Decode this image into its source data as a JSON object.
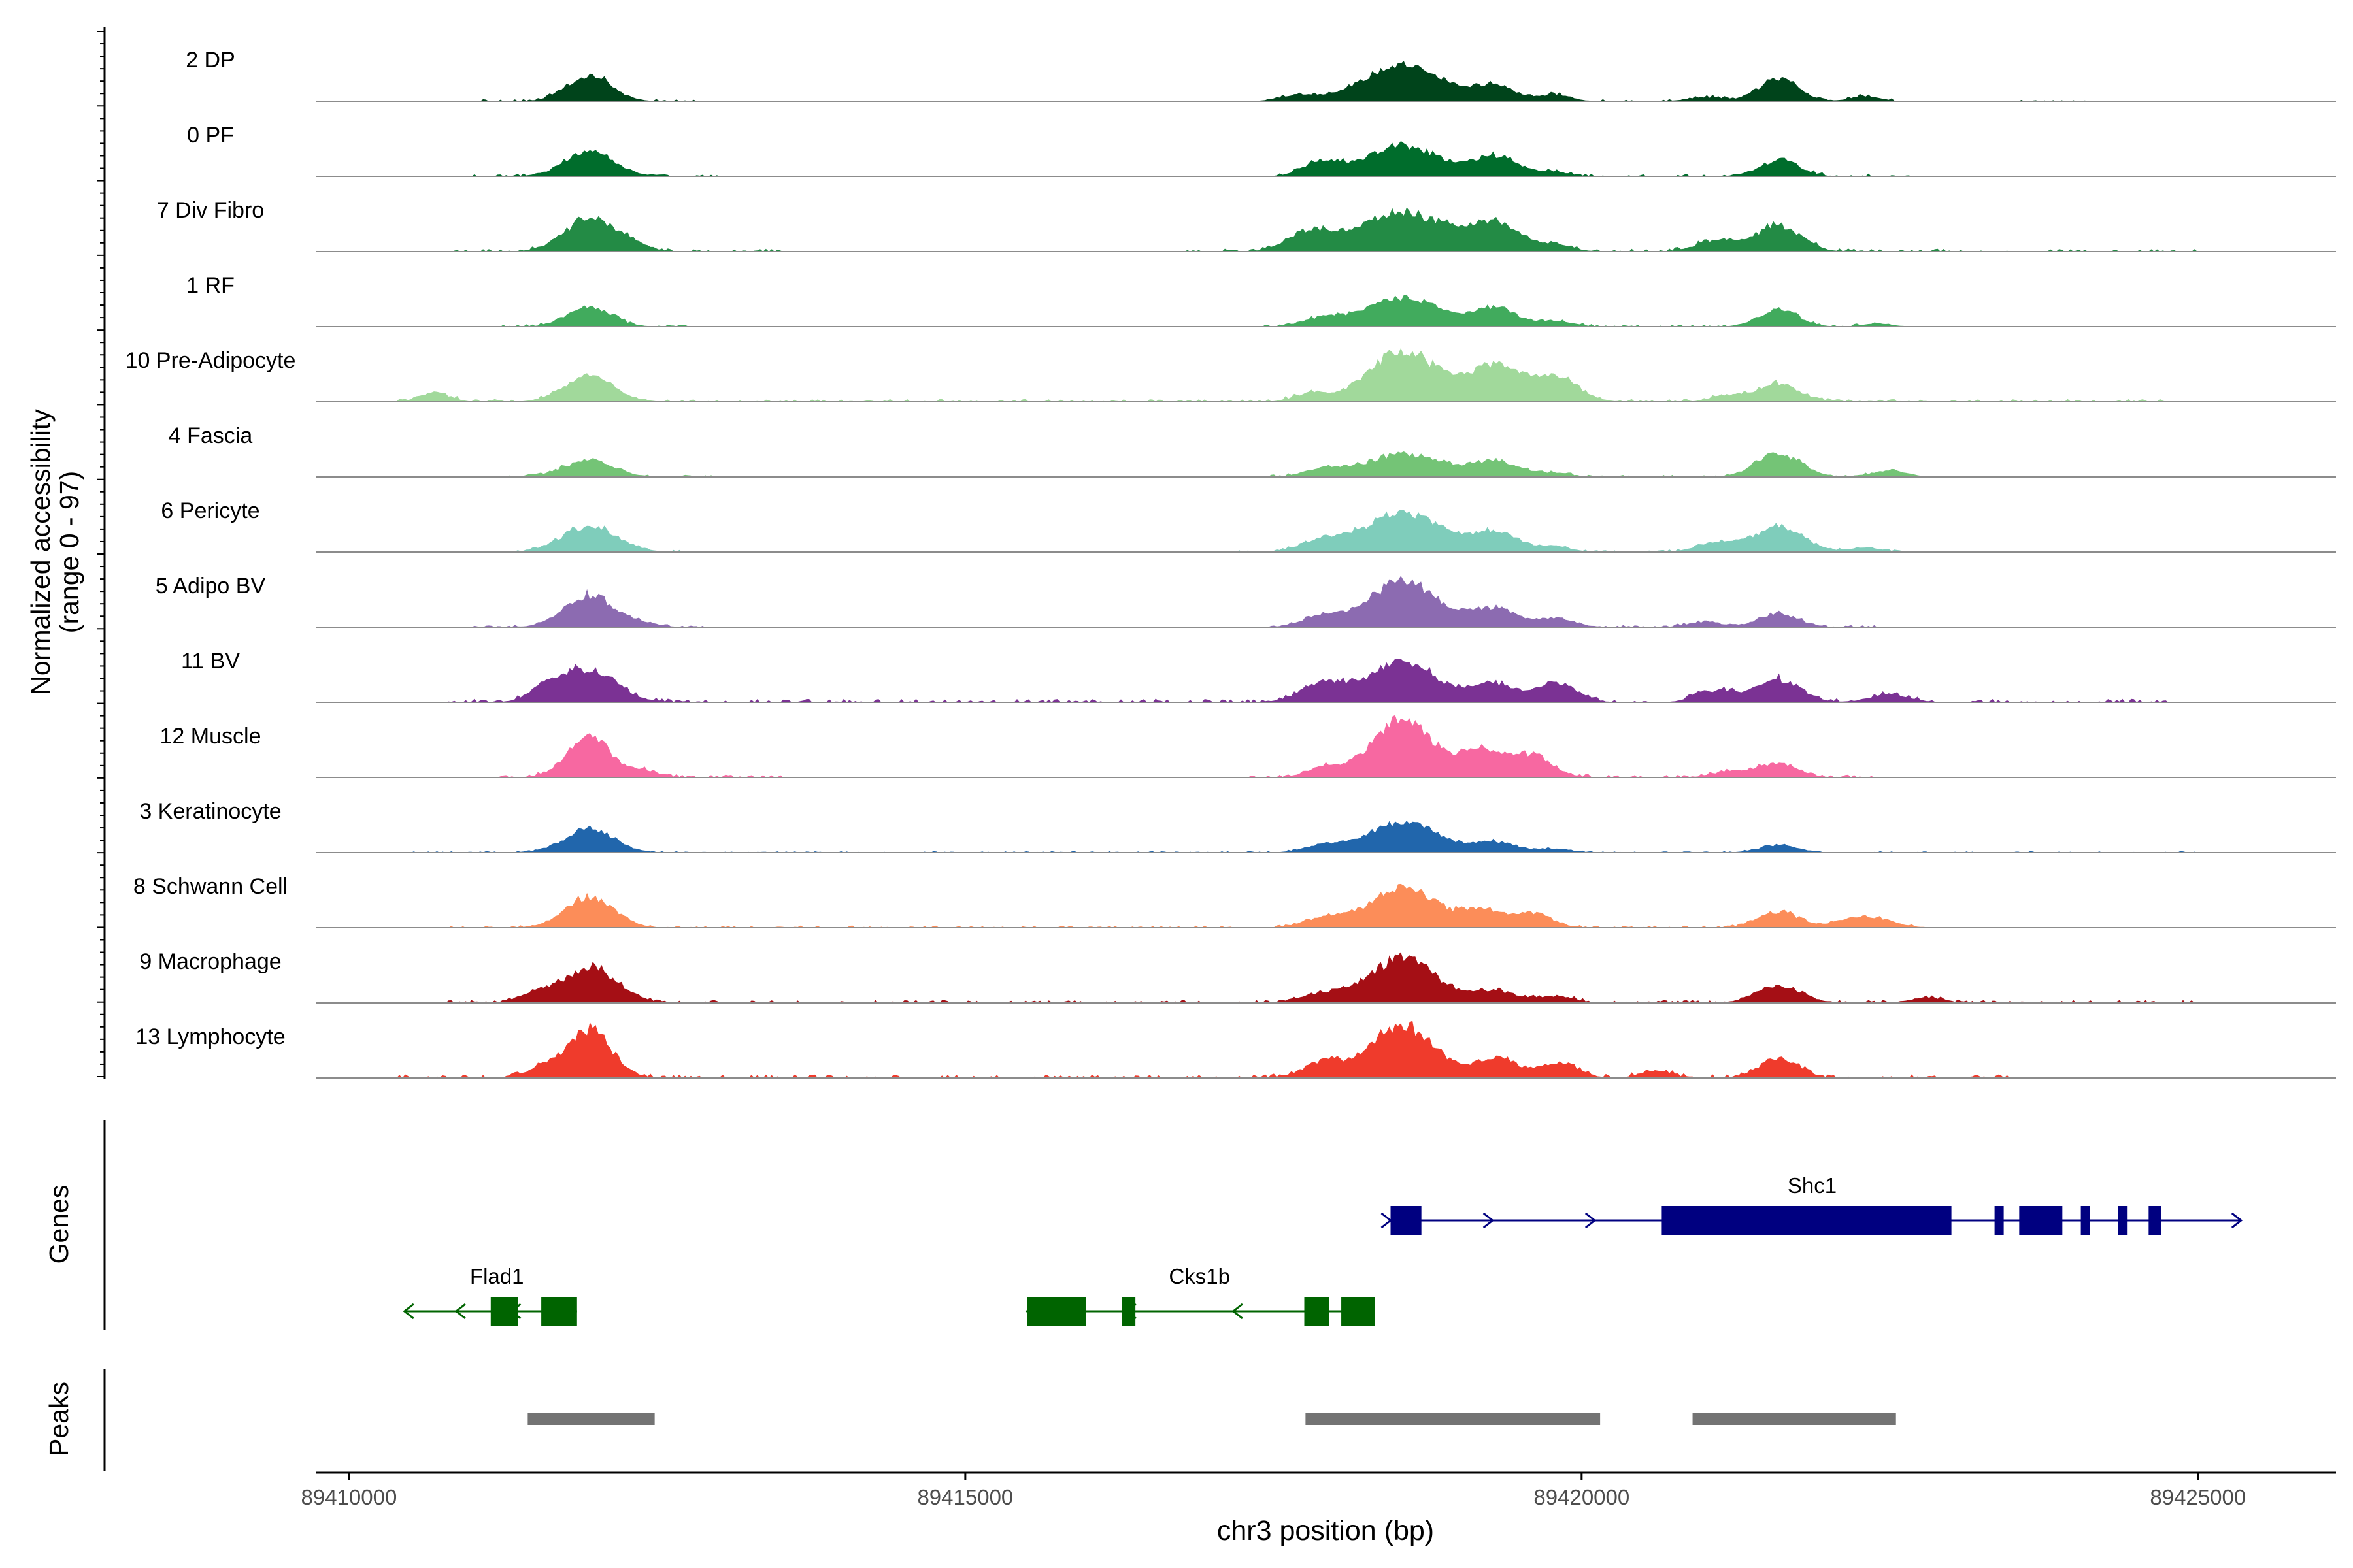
{
  "chart_data": {
    "type": "area",
    "title": "",
    "coverage": {
      "ylabel_line1": "Normalized accessibility",
      "ylabel_line2": "(range 0 - 97)",
      "ylim": [
        0,
        97
      ],
      "tracks": [
        {
          "label": "2 DP",
          "color": "#00441b",
          "peaks": [
            [
              89411950,
              40,
              180
            ],
            [
              89418550,
              55,
              320
            ],
            [
              89419300,
              22,
              180
            ],
            [
              89419800,
              10,
              120
            ],
            [
              89421600,
              35,
              160
            ],
            [
              89422300,
              8,
              120
            ],
            [
              89417700,
              10,
              140
            ],
            [
              89421000,
              6,
              140
            ]
          ],
          "noise": [
            [
              89411000,
              89412800,
              3
            ],
            [
              89417400,
              89422600,
              4
            ],
            [
              89423500,
              89424200,
              2
            ]
          ]
        },
        {
          "label": "0 PF",
          "color": "#006d2c",
          "peaks": [
            [
              89411950,
              38,
              200
            ],
            [
              89418550,
              48,
              280
            ],
            [
              89419300,
              30,
              200
            ],
            [
              89419800,
              6,
              120
            ],
            [
              89421600,
              25,
              160
            ],
            [
              89417900,
              22,
              160
            ]
          ],
          "noise": [
            [
              89411000,
              89413000,
              3
            ],
            [
              89417400,
              89422700,
              4
            ]
          ]
        },
        {
          "label": "7 Div Fibro",
          "color": "#238b45",
          "peaks": [
            [
              89411950,
              52,
              200
            ],
            [
              89412300,
              10,
              120
            ],
            [
              89418550,
              62,
              340
            ],
            [
              89419300,
              40,
              220
            ],
            [
              89419800,
              8,
              140
            ],
            [
              89421600,
              40,
              180
            ],
            [
              89421100,
              18,
              160
            ],
            [
              89417800,
              30,
              180
            ]
          ],
          "noise": [
            [
              89410800,
              89413500,
              4
            ],
            [
              89416800,
              89425000,
              4
            ]
          ]
        },
        {
          "label": "1 RF",
          "color": "#41ab5d",
          "peaks": [
            [
              89411950,
              30,
              180
            ],
            [
              89418550,
              45,
              300
            ],
            [
              89419300,
              28,
              180
            ],
            [
              89419800,
              8,
              140
            ],
            [
              89421600,
              26,
              160
            ],
            [
              89417900,
              12,
              160
            ],
            [
              89422400,
              5,
              120
            ]
          ],
          "noise": [
            [
              89411200,
              89412800,
              3
            ],
            [
              89417400,
              89422600,
              3
            ]
          ]
        },
        {
          "label": "10 Pre-Adipocyte",
          "color": "#a1d99b",
          "peaks": [
            [
              89410700,
              14,
              120
            ],
            [
              89411950,
              40,
              200
            ],
            [
              89418550,
              80,
              280
            ],
            [
              89419300,
              55,
              220
            ],
            [
              89419800,
              35,
              180
            ],
            [
              89421600,
              28,
              160
            ],
            [
              89421200,
              10,
              140
            ],
            [
              89417800,
              12,
              140
            ]
          ],
          "noise": [
            [
              89410400,
              89424800,
              4
            ]
          ]
        },
        {
          "label": "4 Fascia",
          "color": "#74c476",
          "peaks": [
            [
              89411950,
              26,
              200
            ],
            [
              89418550,
              36,
              300
            ],
            [
              89419300,
              24,
              200
            ],
            [
              89419800,
              6,
              120
            ],
            [
              89421600,
              36,
              180
            ],
            [
              89422500,
              10,
              140
            ],
            [
              89417900,
              12,
              160
            ]
          ],
          "noise": [
            [
              89411200,
              89413000,
              3
            ],
            [
              89417400,
              89422700,
              3
            ]
          ]
        },
        {
          "label": "6 Pericyte",
          "color": "#7fcdbb",
          "peaks": [
            [
              89411950,
              40,
              220
            ],
            [
              89418550,
              62,
              300
            ],
            [
              89419300,
              30,
              200
            ],
            [
              89419800,
              8,
              120
            ],
            [
              89421600,
              40,
              200
            ],
            [
              89421100,
              15,
              160
            ],
            [
              89417900,
              18,
              180
            ],
            [
              89422300,
              8,
              120
            ]
          ],
          "noise": [
            [
              89411200,
              89412800,
              3
            ],
            [
              89417200,
              89422600,
              3
            ]
          ]
        },
        {
          "label": "5 Adipo BV",
          "color": "#8c6bb1",
          "peaks": [
            [
              89411950,
              50,
              200
            ],
            [
              89418550,
              72,
              280
            ],
            [
              89419300,
              30,
              180
            ],
            [
              89419800,
              14,
              140
            ],
            [
              89421600,
              22,
              160
            ],
            [
              89421000,
              8,
              140
            ],
            [
              89417900,
              16,
              160
            ],
            [
              89412400,
              5,
              120
            ]
          ],
          "noise": [
            [
              89411000,
              89413000,
              3
            ],
            [
              89417400,
              89422600,
              3
            ]
          ]
        },
        {
          "label": "11 BV",
          "color": "#7b3294",
          "peaks": [
            [
              89411950,
              52,
              220
            ],
            [
              89418550,
              62,
              280
            ],
            [
              89419300,
              28,
              180
            ],
            [
              89419800,
              30,
              160
            ],
            [
              89421600,
              35,
              180
            ],
            [
              89421100,
              18,
              160
            ],
            [
              89417900,
              28,
              180
            ],
            [
              89422500,
              12,
              160
            ],
            [
              89411600,
              18,
              140
            ]
          ],
          "noise": [
            [
              89410800,
              89424800,
              5
            ]
          ]
        },
        {
          "label": "12 Muscle",
          "color": "#f768a1",
          "peaks": [
            [
              89411950,
              62,
              180
            ],
            [
              89418550,
              88,
              260
            ],
            [
              89419200,
              40,
              160
            ],
            [
              89419600,
              35,
              160
            ],
            [
              89421600,
              22,
              160
            ],
            [
              89421200,
              10,
              140
            ],
            [
              89417900,
              14,
              140
            ],
            [
              89412400,
              10,
              120
            ]
          ],
          "noise": [
            [
              89411200,
              89413500,
              4
            ],
            [
              89417300,
              89422400,
              4
            ]
          ]
        },
        {
          "label": "3 Keratinocyte",
          "color": "#2166ac",
          "peaks": [
            [
              89411950,
              36,
              200
            ],
            [
              89418550,
              48,
              280
            ],
            [
              89419300,
              16,
              180
            ],
            [
              89419800,
              6,
              120
            ],
            [
              89421600,
              12,
              160
            ],
            [
              89417900,
              10,
              160
            ]
          ],
          "noise": [
            [
              89410400,
              89425000,
              2
            ]
          ]
        },
        {
          "label": "8 Schwann Cell",
          "color": "#fc8d59",
          "peaks": [
            [
              89411950,
              48,
              200
            ],
            [
              89418550,
              62,
              280
            ],
            [
              89419200,
              25,
              160
            ],
            [
              89419600,
              22,
              160
            ],
            [
              89421600,
              25,
              160
            ],
            [
              89422300,
              18,
              200
            ],
            [
              89417900,
              14,
              160
            ]
          ],
          "noise": [
            [
              89410800,
              89422700,
              3
            ]
          ]
        },
        {
          "label": "9 Macrophage",
          "color": "#a50f15",
          "peaks": [
            [
              89411950,
              55,
              220
            ],
            [
              89411500,
              12,
              140
            ],
            [
              89418550,
              72,
              260
            ],
            [
              89419300,
              18,
              180
            ],
            [
              89419800,
              10,
              140
            ],
            [
              89421600,
              28,
              180
            ],
            [
              89417900,
              14,
              180
            ],
            [
              89422800,
              8,
              140
            ]
          ],
          "noise": [
            [
              89410800,
              89425000,
              4
            ]
          ]
        },
        {
          "label": "13 Lymphocyte",
          "color": "#ef3b2c",
          "peaks": [
            [
              89411950,
              75,
              180
            ],
            [
              89418550,
              82,
              260
            ],
            [
              89419300,
              30,
              160
            ],
            [
              89419800,
              24,
              160
            ],
            [
              89421600,
              32,
              160
            ],
            [
              89417900,
              24,
              160
            ],
            [
              89411550,
              14,
              120
            ],
            [
              89420600,
              12,
              120
            ]
          ],
          "noise": [
            [
              89410400,
              89423500,
              5
            ]
          ]
        }
      ]
    },
    "genes": {
      "ylabel": "Genes",
      "items": [
        {
          "name": "Shc1",
          "strand": "+",
          "start": 89418450,
          "end": 89425350,
          "row": 0,
          "exons": [
            [
              89418450,
              89418700
            ],
            [
              89420650,
              89423000
            ],
            [
              89423350,
              89423400
            ],
            [
              89423550,
              89423900
            ],
            [
              89424050,
              89424100
            ],
            [
              89424350,
              89424400
            ],
            [
              89424600,
              89424700
            ]
          ]
        },
        {
          "name": "Cks1b",
          "strand": "-",
          "start": 89415500,
          "end": 89418200,
          "row": 1,
          "exons": [
            [
              89415500,
              89415980
            ],
            [
              89416270,
              89416380
            ],
            [
              89417750,
              89417950
            ],
            [
              89418050,
              89418320
            ]
          ]
        },
        {
          "name": "Flad1",
          "strand": "-",
          "start": 89410450,
          "end": 89411850,
          "row": 1,
          "exons": [
            [
              89411150,
              89411370
            ],
            [
              89411560,
              89411850
            ]
          ]
        }
      ],
      "plus_color": "#000080",
      "minus_color": "#006400"
    },
    "peaks": {
      "ylabel": "Peaks",
      "color": "#737373",
      "regions": [
        [
          89411450,
          89412480
        ],
        [
          89417760,
          89420150
        ],
        [
          89420900,
          89422550
        ]
      ]
    },
    "xaxis": {
      "label": "chr3 position (bp)",
      "range": [
        89409730,
        89426120
      ],
      "ticks": [
        89410000,
        89415000,
        89420000,
        89425000
      ],
      "tick_labels": [
        "89410000",
        "89415000",
        "89420000",
        "89425000"
      ]
    }
  }
}
